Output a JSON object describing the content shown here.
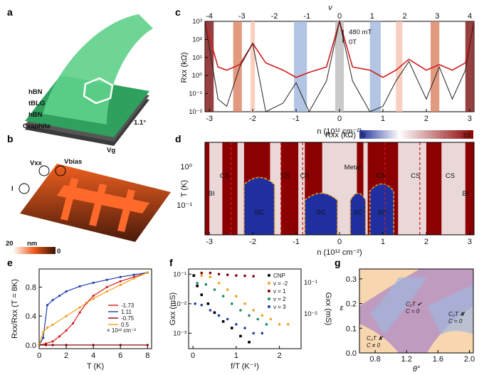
{
  "panels": {
    "a": {
      "label": "a",
      "layers": [
        "hBN",
        "tBLG",
        "hBN",
        "Graphite"
      ],
      "angle": "1.1°"
    },
    "b": {
      "label": "b",
      "circuit": {
        "vxx": "Vxx",
        "vbias": "Vbias",
        "vg": "Vg",
        "current": "I"
      },
      "scale_value": "20",
      "scale_unit": "nm",
      "scale_min": "0"
    },
    "c": {
      "label": "c",
      "top_axis_label": "ν",
      "top_ticks": [
        "-4",
        "-3",
        "-2",
        "-1",
        "0",
        "1",
        "2",
        "3",
        "4"
      ],
      "xlabel": "n (10¹² cm⁻²)",
      "ylabel": "Rxx (kΩ)",
      "x_ticks": [
        "-3",
        "-2",
        "-1",
        "0",
        "1",
        "2",
        "3"
      ],
      "y_ticks": [
        "10³",
        "10²",
        "10¹",
        "10⁰",
        "10⁻¹",
        "10⁻²"
      ],
      "field_high": "480 mT",
      "field_low": "0T"
    },
    "d": {
      "label": "d",
      "colorbar_label": "Rxx (kΩ)",
      "colorbar_min": "0",
      "colorbar_max": "10",
      "ylabel": "T (K)",
      "xlabel": "n (10¹² cm⁻²)",
      "x_ticks": [
        "-3",
        "-2",
        "-1",
        "0",
        "1",
        "2",
        "3"
      ],
      "y_ticks": [
        "10⁰",
        "10⁻¹"
      ],
      "annotations": {
        "bi": "BI",
        "cs": "CS",
        "sc": "SC",
        "metal": "Metal"
      }
    },
    "e": {
      "label": "e",
      "ylabel": "Rxx/Rxx (T = 8K)",
      "xlabel": "T (K)",
      "x_ticks": [
        "0",
        "2",
        "4",
        "6",
        "8"
      ],
      "y_ticks": [
        "0.0",
        "0.4",
        "0.8"
      ],
      "legend": [
        "-1.73",
        "1.11",
        "-0.75",
        "0.5"
      ],
      "legend_unit": "× 10¹² cm⁻²"
    },
    "f": {
      "label": "f",
      "ylabel_left": "Gxx (mS)",
      "ylabel_right": "Gxx (mS)",
      "xlabel": "f/T (K⁻¹)",
      "x_ticks": [
        "0",
        "1",
        "2"
      ],
      "left_ticks": [
        "10⁻¹",
        "10⁻²",
        "10⁻³"
      ],
      "right_ticks": [
        "10⁻¹",
        "10⁻²"
      ],
      "legend": [
        "CNP",
        "ν = -2",
        "ν = 1",
        "ν = 2",
        "ν = 3"
      ]
    },
    "g": {
      "label": "g",
      "ylabel": "ε",
      "xlabel": "θ°",
      "x_ticks": [
        "0.8",
        "1.2",
        "1.6",
        "2.0"
      ],
      "y_ticks": [
        "0.0",
        "0.1",
        "0.2",
        "0.3"
      ],
      "region_left_1": "C₂T ✘",
      "region_left_2": "C ≠ 0",
      "region_mid_1": "C₂T ✔",
      "region_mid_2": "C = 0",
      "region_right_1": "C₂T ✘",
      "region_right_2": "C = 0"
    }
  },
  "colors": {
    "red": "#d21b1b",
    "dark_red": "#8b0000",
    "blue": "#1f3fa8",
    "orange": "#f0a020",
    "green": "#1b8a6b",
    "salmon": "#d98060",
    "sky": "#9fb6dd"
  },
  "chart_data": [
    {
      "type": "line",
      "panel": "c",
      "series": [
        {
          "name": "480 mT",
          "x": [
            -3.1,
            -2.8,
            -2.6,
            -2.3,
            -2.0,
            -1.7,
            -1.3,
            -1.0,
            -0.7,
            -0.3,
            0.0,
            0.3,
            0.7,
            1.0,
            1.3,
            1.6,
            2.0,
            2.3,
            2.6,
            2.9,
            3.1
          ],
          "y": [
            1000,
            3,
            2,
            4,
            60,
            5,
            2,
            0.8,
            1.5,
            3,
            1000,
            3,
            2,
            0.8,
            2,
            8,
            2,
            4,
            2,
            5,
            1000
          ]
        },
        {
          "name": "0T",
          "x": [
            -3.1,
            -2.8,
            -2.6,
            -2.3,
            -2.0,
            -1.7,
            -1.3,
            -1.0,
            -0.7,
            -0.3,
            0.0,
            0.3,
            0.7,
            1.0,
            1.3,
            1.6,
            2.0,
            2.3,
            2.6,
            2.9,
            3.1
          ],
          "y": [
            1000,
            0.05,
            0.02,
            3,
            60,
            0.01,
            0.03,
            0.4,
            0.01,
            0.5,
            1000,
            0.5,
            0.01,
            0.02,
            0.5,
            6,
            0.05,
            3,
            0.05,
            2,
            1000
          ]
        }
      ],
      "xlim": [
        -3.1,
        3.1
      ],
      "ylim": [
        0.01,
        1000
      ],
      "y_scale": "log"
    },
    {
      "type": "line",
      "panel": "e",
      "series": [
        {
          "name": "-1.73",
          "x": [
            0,
            0.5,
            1,
            1.5,
            2,
            2.5,
            3,
            3.5,
            4,
            5,
            6,
            7,
            8
          ],
          "y": [
            0.0,
            0.02,
            0.05,
            0.12,
            0.2,
            0.3,
            0.45,
            0.58,
            0.68,
            0.8,
            0.88,
            0.94,
            1.0
          ]
        },
        {
          "name": "1.11",
          "x": [
            0,
            0.3,
            0.6,
            1.0,
            1.5,
            2,
            3,
            4,
            5,
            6,
            7,
            8
          ],
          "y": [
            0.0,
            0.1,
            0.55,
            0.62,
            0.68,
            0.74,
            0.81,
            0.86,
            0.9,
            0.94,
            0.97,
            1.0
          ]
        },
        {
          "name": "-0.75",
          "x": [
            0,
            0.5,
            1,
            2,
            4,
            6,
            8
          ],
          "y": [
            0.0,
            0.0,
            0.0,
            0.0,
            0.0,
            0.0,
            0.0
          ]
        },
        {
          "name": "0.5",
          "x": [
            0,
            0.3,
            0.6,
            1,
            2,
            3,
            4,
            5,
            6,
            7,
            8
          ],
          "y": [
            0.0,
            0.18,
            0.24,
            0.28,
            0.4,
            0.52,
            0.64,
            0.74,
            0.83,
            0.92,
            1.0
          ]
        }
      ],
      "xlim": [
        0,
        8.3
      ],
      "ylim": [
        -0.05,
        1.05
      ]
    },
    {
      "type": "scatter",
      "panel": "f",
      "series": [
        {
          "name": "CNP",
          "x": [
            0.02,
            0.1,
            0.2,
            0.35,
            0.5,
            0.7,
            0.9,
            1.1,
            1.3
          ],
          "y": [
            0.09,
            0.04,
            0.02,
            0.01,
            0.005,
            0.0025,
            0.0015,
            0.0008,
            0.0005
          ]
        },
        {
          "name": "ν = -2",
          "x": [
            0.2,
            0.4,
            0.6,
            0.8,
            1.0,
            1.2,
            1.4,
            1.6,
            1.8,
            2.0,
            2.2
          ],
          "y": [
            0.09,
            0.08,
            0.05,
            0.03,
            0.018,
            0.01,
            0.006,
            0.004,
            0.003,
            0.002,
            0.002
          ]
        },
        {
          "name": "ν = 1",
          "x": [
            0.2,
            0.4,
            0.6,
            0.8,
            1.0,
            1.2,
            1.4
          ],
          "y": [
            0.11,
            0.11,
            0.1,
            0.095,
            0.09,
            0.088,
            0.085
          ]
        },
        {
          "name": "ν = 2",
          "x": [
            0.1,
            0.3,
            0.5,
            0.7,
            0.9,
            1.1,
            1.3,
            1.5,
            1.7
          ],
          "y": [
            0.05,
            0.045,
            0.03,
            0.018,
            0.01,
            0.006,
            0.004,
            0.003,
            0.002
          ]
        },
        {
          "name": "ν = 3",
          "x": [
            0.05,
            0.2,
            0.4,
            0.6,
            0.8,
            1.0,
            1.2,
            1.4,
            1.6
          ],
          "y": [
            0.01,
            0.009,
            0.006,
            0.004,
            0.003,
            0.002,
            0.0015,
            0.001,
            0.001
          ]
        }
      ],
      "xlim": [
        -0.1,
        2.5
      ],
      "ylim": [
        0.0003,
        0.15
      ],
      "y_scale": "log"
    }
  ]
}
